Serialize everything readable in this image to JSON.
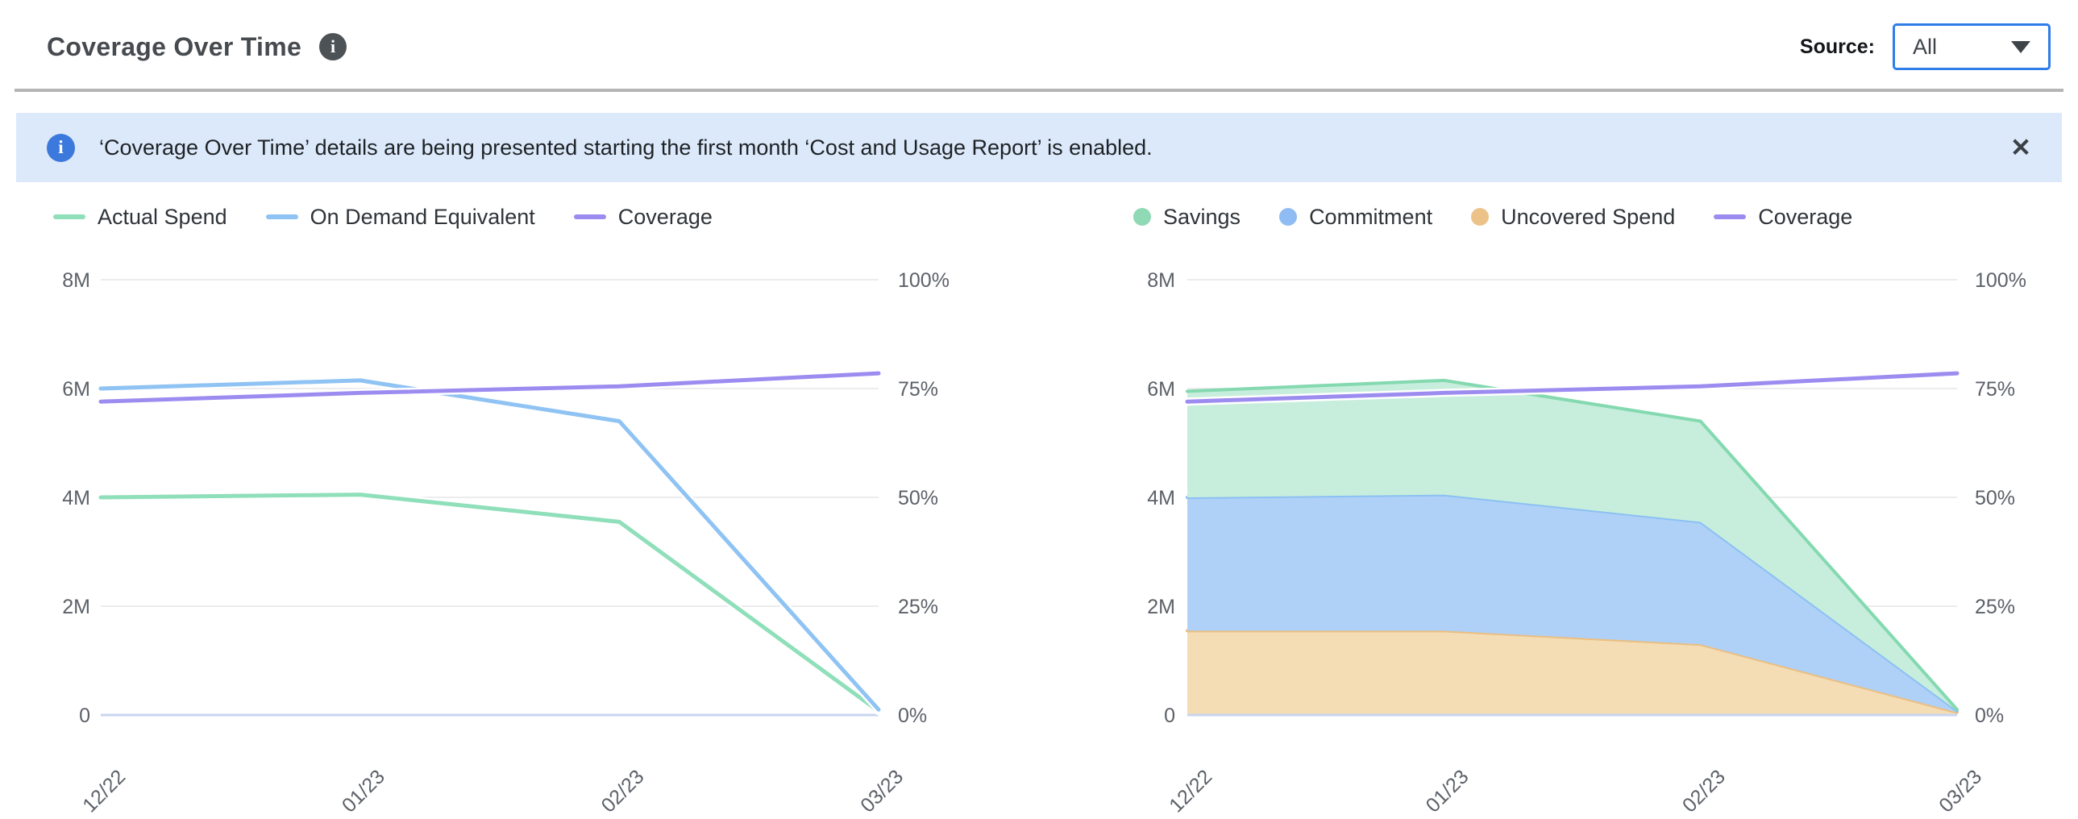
{
  "header": {
    "title": "Coverage Over Time",
    "info_icon": "i",
    "source_label": "Source:",
    "source_value": "All"
  },
  "banner": {
    "icon": "i",
    "text": "‘Coverage Over Time’ details are being presented starting the first month ‘Cost and Usage Report’ is enabled.",
    "close_glyph": "✕"
  },
  "colors": {
    "mint": "#8fdfba",
    "mint_fill": "#c7eedc",
    "blue": "#8fc3f3",
    "blue_fill": "#afd1f7",
    "orange": "#ecc288",
    "orange_fill": "#f4dcb4",
    "purple": "#9c8cf0",
    "grid": "#e6e6e9",
    "baseline": "#c9d5f0",
    "banner_bg": "#dce9fa",
    "accent_blue": "#2e7de9"
  },
  "chart_data": [
    {
      "type": "line",
      "title": "Spend vs Coverage (lines)",
      "x": [
        "12/22",
        "01/23",
        "02/23",
        "03/23"
      ],
      "y_left": {
        "ticks": [
          "8M",
          "6M",
          "4M",
          "2M",
          "0"
        ],
        "max": 8,
        "unit": "millions"
      },
      "y_right": {
        "ticks": [
          "100%",
          "75%",
          "50%",
          "25%",
          "0%"
        ],
        "max": 100,
        "unit": "percent"
      },
      "grid": true,
      "legend_position": "top-left",
      "legend": [
        {
          "label": "Actual Spend",
          "swatch": "line",
          "color": "#8fdfba"
        },
        {
          "label": "On Demand Equivalent",
          "swatch": "line",
          "color": "#8fc3f3"
        },
        {
          "label": "Coverage",
          "swatch": "line",
          "color": "#9c8cf0"
        }
      ],
      "series": [
        {
          "name": "Actual Spend",
          "axis": "left",
          "color": "#8fdfba",
          "values": [
            4.0,
            4.05,
            3.55,
            0.07
          ]
        },
        {
          "name": "On Demand Equivalent",
          "axis": "left",
          "color": "#8fc3f3",
          "values": [
            6.0,
            6.15,
            5.4,
            0.1
          ]
        },
        {
          "name": "Coverage",
          "axis": "right",
          "color": "#9c8cf0",
          "values": [
            72,
            74,
            75.5,
            78.5
          ]
        }
      ]
    },
    {
      "type": "area",
      "title": "Spend breakdown vs Coverage (stacked areas)",
      "x": [
        "12/22",
        "01/23",
        "02/23",
        "03/23"
      ],
      "y_left": {
        "ticks": [
          "8M",
          "6M",
          "4M",
          "2M",
          "0"
        ],
        "max": 8,
        "unit": "millions"
      },
      "y_right": {
        "ticks": [
          "100%",
          "75%",
          "50%",
          "25%",
          "0%"
        ],
        "max": 100,
        "unit": "percent"
      },
      "grid": true,
      "legend_position": "top-left",
      "legend": [
        {
          "label": "Savings",
          "swatch": "circle",
          "color": "#8fd9b4"
        },
        {
          "label": "Commitment",
          "swatch": "circle",
          "color": "#8fbcf2"
        },
        {
          "label": "Uncovered Spend",
          "swatch": "circle",
          "color": "#ecc288"
        },
        {
          "label": "Coverage",
          "swatch": "line",
          "color": "#9c8cf0"
        }
      ],
      "series": [
        {
          "name": "Uncovered Spend",
          "axis": "left",
          "stack": true,
          "color": "#eabf82",
          "fill": "#f4dcb4",
          "values": [
            1.55,
            1.55,
            1.3,
            0.05
          ]
        },
        {
          "name": "Commitment",
          "axis": "left",
          "stack": true,
          "color": "#8cc0f3",
          "fill": "#afd1f7",
          "values": [
            2.45,
            2.5,
            2.25,
            0.03
          ]
        },
        {
          "name": "Savings",
          "axis": "left",
          "stack": true,
          "color": "#84d9b0",
          "fill": "#c7eedc",
          "values": [
            1.95,
            2.1,
            1.85,
            0.02
          ]
        },
        {
          "name": "Coverage",
          "axis": "right",
          "color": "#9c8cf0",
          "values": [
            72,
            74,
            75.5,
            78.5
          ]
        }
      ]
    }
  ]
}
